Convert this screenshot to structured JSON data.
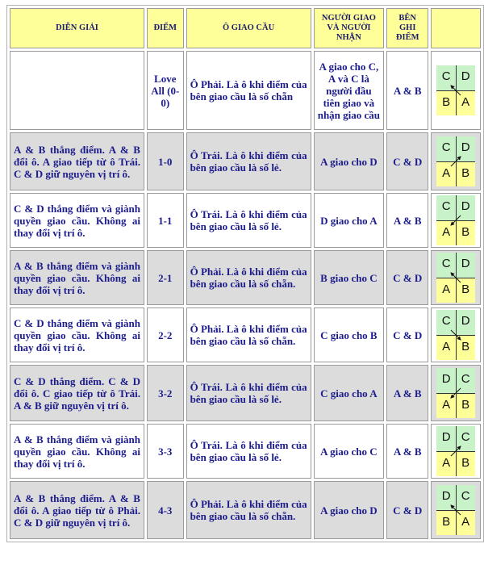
{
  "headers": [
    "DIỄN GIẢI",
    "ĐIỂM",
    "Ô GIAO CẦU",
    "NGƯỜI GIAO VÀ NGƯỜI NHẬN",
    "BÊN GHI ĐIỂM",
    ""
  ],
  "rows": [
    {
      "desc": "",
      "score": "Love All (0-0)",
      "box": "Ô Phải. Là ô khi điểm của bên giao cầu là số chẵn",
      "serve": "A giao cho C, A và C là người đầu tiên giao và nhận giao cầu",
      "side": "A & B",
      "court": {
        "top": [
          "C",
          "D"
        ],
        "bottom": [
          "B",
          "A"
        ],
        "arrow": "up-left"
      }
    },
    {
      "desc": "A & B thắng điểm. A & B đổi ô. A giao tiếp từ ô Trái. C & D giữ nguyên vị trí ô.",
      "score": "1-0",
      "box": "Ô Trái. Là ô khi điểm của bên giao cầu là số lẻ.",
      "serve": "A giao cho D",
      "side": "C & D",
      "court": {
        "top": [
          "C",
          "D"
        ],
        "bottom": [
          "A",
          "B"
        ],
        "arrow": "up-right"
      }
    },
    {
      "desc": "C & D thắng điểm và giành quyền giao cầu. Không ai thay đổi vị trí ô.",
      "score": "1-1",
      "box": "Ô Trái. Là ô khi điểm của bên giao cầu là số lẻ.",
      "serve": "D giao cho A",
      "side": "A & B",
      "court": {
        "top": [
          "C",
          "D"
        ],
        "bottom": [
          "A",
          "B"
        ],
        "arrow": "down-left"
      }
    },
    {
      "desc": "A & B thắng điểm và giành quyền giao cầu. Không ai thay đổi vị trí ô.",
      "score": "2-1",
      "box": "Ô Phải. Là ô khi điểm của bên giao cầu là số chẵn.",
      "serve": "B giao cho C",
      "side": "C & D",
      "court": {
        "top": [
          "C",
          "D"
        ],
        "bottom": [
          "A",
          "B"
        ],
        "arrow": "up-left"
      }
    },
    {
      "desc": "C & D thắng điểm và giành quyền giao cầu. Không ai thay đổi vị trí ô.",
      "score": "2-2",
      "box": "Ô Phải. Là ô khi điểm của bên giao cầu là số chẵn.",
      "serve": "C giao cho B",
      "side": "C & D",
      "court": {
        "top": [
          "C",
          "D"
        ],
        "bottom": [
          "A",
          "B"
        ],
        "arrow": "down-right"
      }
    },
    {
      "desc": "C & D thắng điểm. C & D đổi ô. C giao tiếp từ ô Trái. A & B giữ nguyên vị trí ô.",
      "score": "3-2",
      "box": "Ô Trái. Là ô khi điểm của bên giao cầu là số lẻ.",
      "serve": "C giao cho A",
      "side": "A & B",
      "court": {
        "top": [
          "D",
          "C"
        ],
        "bottom": [
          "A",
          "B"
        ],
        "arrow": "down-left"
      }
    },
    {
      "desc": "A & B thắng điểm và giành quyền giao cầu. Không ai thay đổi vị trí ô.",
      "score": "3-3",
      "box": "Ô Trái. Là ô khi điểm của bên giao cầu là số lẻ.",
      "serve": "A giao cho C",
      "side": "A & B",
      "court": {
        "top": [
          "D",
          "C"
        ],
        "bottom": [
          "A",
          "B"
        ],
        "arrow": "up-right"
      }
    },
    {
      "desc": "A & B thắng điểm. A & B đổi ô. A giao tiếp từ ô Phải. C & D giữ nguyên vị trí ô.",
      "score": "4-3",
      "box": "Ô Phải. Là ô khi điểm của bên giao cầu là số chẵn.",
      "serve": "A giao cho D",
      "side": "C & D",
      "court": {
        "top": [
          "D",
          "C"
        ],
        "bottom": [
          "B",
          "A"
        ],
        "arrow": "up-left"
      }
    }
  ],
  "colors": {
    "header": "#ffff99",
    "row_gray": "#dcdcdc",
    "text": "#1c1c8c",
    "court_top": "#c8f2c8",
    "court_bottom": "#ffff99"
  }
}
